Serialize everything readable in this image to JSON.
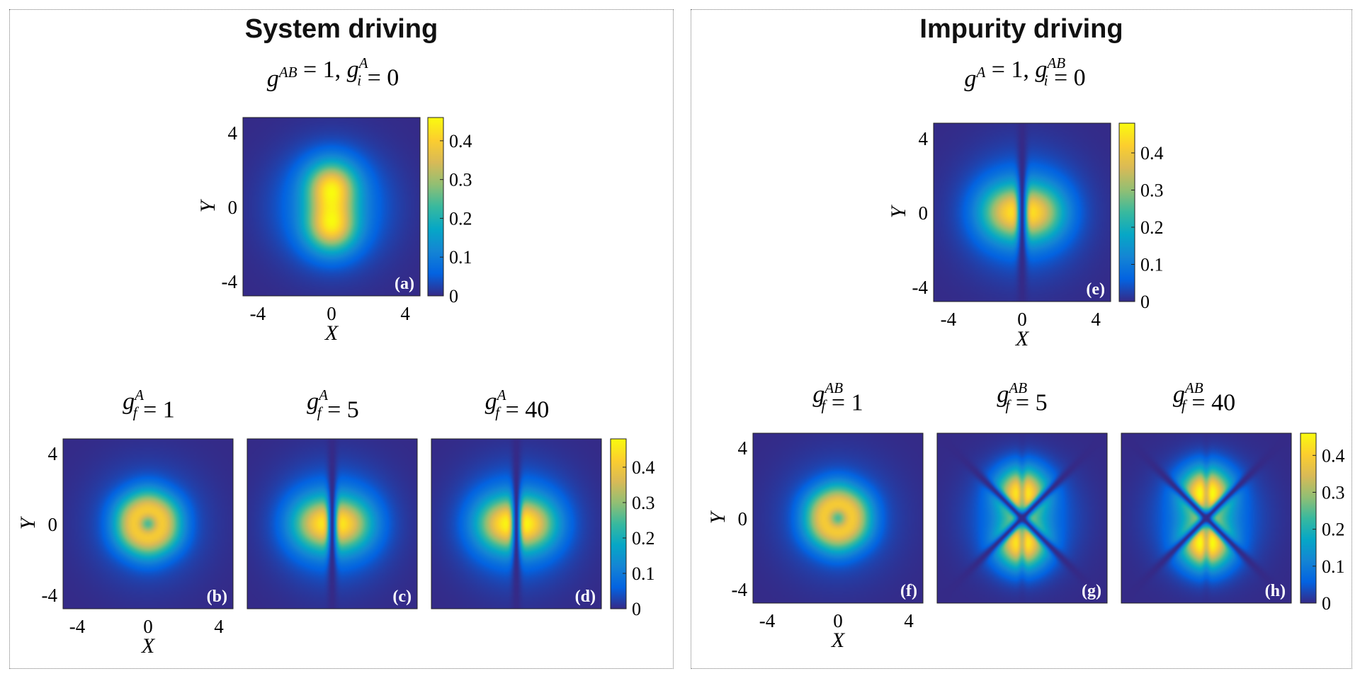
{
  "sections": [
    {
      "title": "System driving",
      "top_title": "g^{AB} = 1,  g_i^{A} = 0",
      "bottom_titles": [
        "g_f^{A} = 1",
        "g_f^{A} = 5",
        "g_f^{A} = 40"
      ]
    },
    {
      "title": "Impurity driving",
      "top_title": "g^{A} = 1,  g_i^{AB} = 0",
      "bottom_titles": [
        "g_f^{AB} = 1",
        "g_f^{AB} = 5",
        "g_f^{AB} = 40"
      ]
    }
  ],
  "colors": {
    "background_low": "#352a87",
    "colormap": [
      "#352a87",
      "#0363e1",
      "#1485d4",
      "#06a7c6",
      "#38b99e",
      "#92bf73",
      "#d9ba56",
      "#fcce2e",
      "#f9fb0e"
    ]
  },
  "chart_data": [
    {
      "panel": "(a)",
      "type": "heatmap",
      "title": "g^{AB} = 1,  g_i^{A} = 0",
      "xlabel": "X",
      "ylabel": "Y",
      "xlim": [
        -4.8,
        4.8
      ],
      "ylim": [
        -4.8,
        4.8
      ],
      "xticks": [
        -4,
        0,
        4
      ],
      "yticks": [
        -4,
        0,
        4
      ],
      "pattern": "two lobes along Y",
      "max_density": 0.46,
      "colorbar": {
        "ticks": [
          "0",
          "0.1",
          "0.2",
          "0.3",
          "0.4"
        ],
        "range": [
          0,
          0.46
        ]
      }
    },
    {
      "panel": "(b)",
      "type": "heatmap",
      "title": "g_f^{A} = 1",
      "xlabel": "X",
      "ylabel": "Y",
      "xlim": [
        -4.8,
        4.8
      ],
      "ylim": [
        -4.8,
        4.8
      ],
      "xticks": [
        -4,
        0,
        4
      ],
      "yticks": [
        -4,
        0,
        4
      ],
      "pattern": "six-fold flower",
      "max_density": 0.4
    },
    {
      "panel": "(c)",
      "type": "heatmap",
      "title": "g_f^{A} = 5",
      "xlim": [
        -4.8,
        4.8
      ],
      "ylim": [
        -4.8,
        4.8
      ],
      "pattern": "two lobes along X with node at X=0",
      "max_density": 0.44
    },
    {
      "panel": "(d)",
      "type": "heatmap",
      "title": "g_f^{A} = 40",
      "xlim": [
        -4.8,
        4.8
      ],
      "ylim": [
        -4.8,
        4.8
      ],
      "pattern": "two lobes along X with node at X=0",
      "max_density": 0.47,
      "colorbar": {
        "ticks": [
          "0",
          "0.1",
          "0.2",
          "0.3",
          "0.4"
        ],
        "range": [
          0,
          0.48
        ]
      }
    },
    {
      "panel": "(e)",
      "type": "heatmap",
      "title": "g^{A} = 1,  g_i^{AB} = 0",
      "xlabel": "X",
      "ylabel": "Y",
      "xlim": [
        -4.8,
        4.8
      ],
      "ylim": [
        -4.8,
        4.8
      ],
      "xticks": [
        -4,
        0,
        4
      ],
      "yticks": [
        -4,
        0,
        4
      ],
      "pattern": "two lobes along X with node at X=0",
      "max_density": 0.44,
      "colorbar": {
        "ticks": [
          "0",
          "0.1",
          "0.2",
          "0.3",
          "0.4"
        ],
        "range": [
          0,
          0.48
        ]
      }
    },
    {
      "panel": "(f)",
      "type": "heatmap",
      "title": "g_f^{AB} = 1",
      "xlabel": "X",
      "ylabel": "Y",
      "xlim": [
        -4.8,
        4.8
      ],
      "ylim": [
        -4.8,
        4.8
      ],
      "xticks": [
        -4,
        0,
        4
      ],
      "yticks": [
        -4,
        0,
        4
      ],
      "pattern": "six-fold flower",
      "max_density": 0.4
    },
    {
      "panel": "(g)",
      "type": "heatmap",
      "title": "g_f^{AB} = 5",
      "xlim": [
        -4.8,
        4.8
      ],
      "ylim": [
        -4.8,
        4.8
      ],
      "pattern": "two lobes along Y with X-shaped nodal lines",
      "max_density": 0.44
    },
    {
      "panel": "(h)",
      "type": "heatmap",
      "title": "g_f^{AB} = 40",
      "xlim": [
        -4.8,
        4.8
      ],
      "ylim": [
        -4.8,
        4.8
      ],
      "pattern": "two lobes along Y with X-shaped nodal lines",
      "max_density": 0.46,
      "colorbar": {
        "ticks": [
          "0",
          "0.1",
          "0.2",
          "0.3",
          "0.4"
        ],
        "range": [
          0,
          0.46
        ]
      }
    }
  ]
}
